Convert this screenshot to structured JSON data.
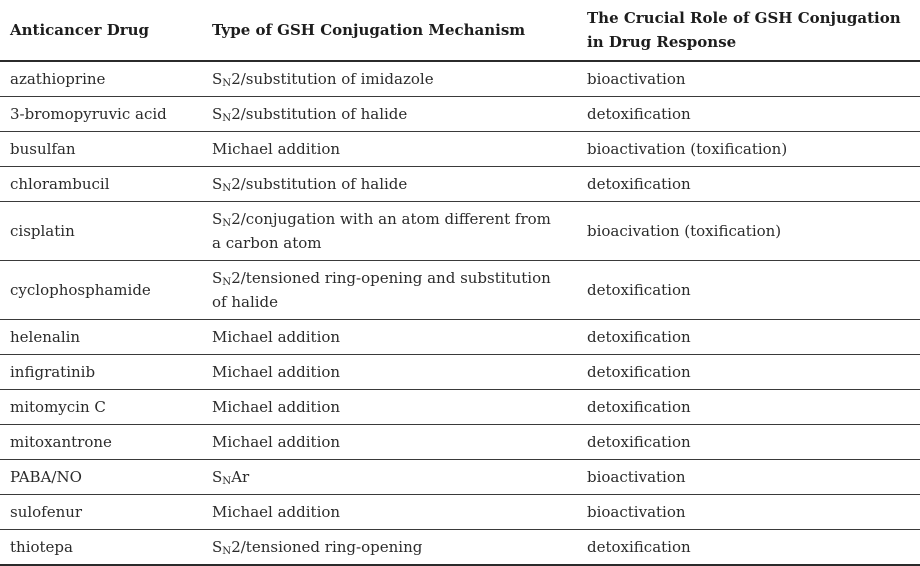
{
  "page": {
    "background_color": "#ffffff",
    "text_color": "#2b2b2b",
    "rule_heavy_color": "#2b2b2b",
    "rule_light_color": "#3a3a3a"
  },
  "table": {
    "columns": [
      {
        "label": "Anticancer Drug"
      },
      {
        "label": "Type of GSH Conjugation Mechanism"
      },
      {
        "label": "The Crucial Role of GSH Conjugation in Drug Response"
      }
    ],
    "rows": [
      {
        "drug": "azathioprine",
        "mech_pre": "S",
        "mech_sub": "N",
        "mech_post": "2/substitution of imidazole",
        "role": "bioactivation"
      },
      {
        "drug": "3-bromopyruvic acid",
        "mech_pre": "S",
        "mech_sub": "N",
        "mech_post": "2/substitution of halide",
        "role": "detoxification"
      },
      {
        "drug": "busulfan",
        "mech_pre": "Michael addition",
        "mech_sub": "",
        "mech_post": "",
        "role": "bioactivation (toxification)"
      },
      {
        "drug": "chlorambucil",
        "mech_pre": "S",
        "mech_sub": "N",
        "mech_post": "2/substitution of halide",
        "role": "detoxification"
      },
      {
        "drug": "cisplatin",
        "mech_pre": "S",
        "mech_sub": "N",
        "mech_post": "2/conjugation with an atom different from a carbon atom",
        "role": "bioacivation (toxification)"
      },
      {
        "drug": "cyclophosphamide",
        "mech_pre": "S",
        "mech_sub": "N",
        "mech_post": "2/tensioned ring-opening and substitution of halide",
        "role": "detoxification"
      },
      {
        "drug": "helenalin",
        "mech_pre": "Michael addition",
        "mech_sub": "",
        "mech_post": "",
        "role": "detoxification"
      },
      {
        "drug": "infigratinib",
        "mech_pre": "Michael addition",
        "mech_sub": "",
        "mech_post": "",
        "role": "detoxification"
      },
      {
        "drug": "mitomycin C",
        "mech_pre": "Michael addition",
        "mech_sub": "",
        "mech_post": "",
        "role": "detoxification"
      },
      {
        "drug": "mitoxantrone",
        "mech_pre": "Michael addition",
        "mech_sub": "",
        "mech_post": "",
        "role": "detoxification"
      },
      {
        "drug": "PABA/NO",
        "mech_pre": "S",
        "mech_sub": "N",
        "mech_post": "Ar",
        "role": "bioactivation"
      },
      {
        "drug": "sulofenur",
        "mech_pre": "Michael addition",
        "mech_sub": "",
        "mech_post": "",
        "role": "bioactivation"
      },
      {
        "drug": "thiotepa",
        "mech_pre": "S",
        "mech_sub": "N",
        "mech_post": "2/tensioned ring-opening",
        "role": "detoxification"
      }
    ]
  }
}
